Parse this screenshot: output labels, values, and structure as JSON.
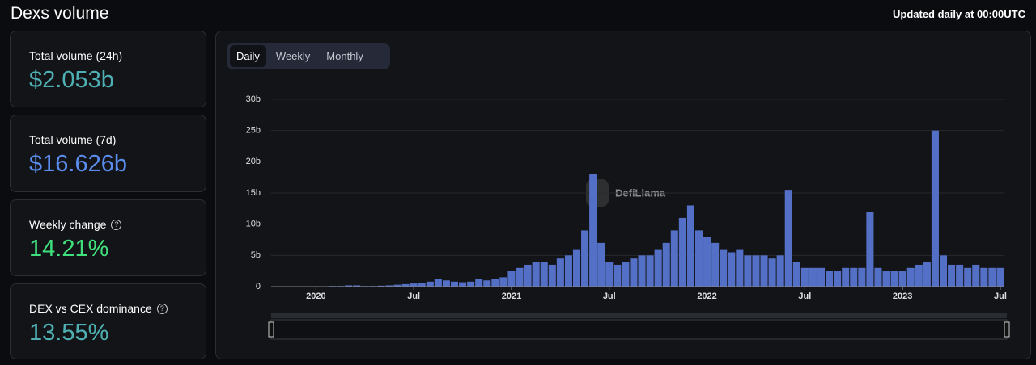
{
  "header": {
    "title": "Dexs volume",
    "updated": "Updated daily at 00:00UTC"
  },
  "cards": [
    {
      "label": "Total volume (24h)",
      "value": "$2.053b"
    },
    {
      "label": "Total volume (7d)",
      "value": "$16.626b"
    },
    {
      "label": "Weekly change",
      "value": "14.21%"
    },
    {
      "label": "DEX vs CEX dominance",
      "value": "13.55%"
    }
  ],
  "tabs": [
    "Daily",
    "Weekly",
    "Monthly"
  ],
  "watermark": "DefiLlama",
  "chart_data": {
    "type": "bar",
    "categories": [
      null,
      null,
      null,
      null,
      null,
      "2020",
      null,
      null,
      null,
      null,
      null,
      null,
      null,
      null,
      null,
      null,
      null,
      "Jul",
      null,
      null,
      null,
      null,
      null,
      null,
      null,
      null,
      null,
      null,
      null,
      "2021",
      null,
      null,
      null,
      null,
      null,
      null,
      null,
      null,
      null,
      null,
      null,
      "Jul",
      null,
      null,
      null,
      null,
      null,
      null,
      null,
      null,
      null,
      null,
      null,
      "2022",
      null,
      null,
      null,
      null,
      null,
      null,
      null,
      null,
      null,
      null,
      null,
      "Jul",
      null,
      null,
      null,
      null,
      null,
      null,
      null,
      null,
      null,
      null,
      null,
      "2023",
      null,
      null,
      null,
      null,
      null,
      null,
      null,
      null,
      null,
      null,
      null,
      "Jul"
    ],
    "values": [
      0.05,
      0.05,
      0.05,
      0.05,
      0.05,
      0.05,
      0.05,
      0.1,
      0.1,
      0.2,
      0.2,
      0.1,
      0.1,
      0.15,
      0.2,
      0.3,
      0.4,
      0.5,
      0.6,
      0.8,
      1.2,
      1.0,
      0.8,
      0.7,
      0.8,
      1.2,
      1.0,
      1.2,
      1.5,
      2.5,
      3,
      3.5,
      4,
      4,
      3.5,
      4.5,
      5,
      6,
      9,
      18,
      7,
      4,
      3.5,
      4,
      4.5,
      5,
      5,
      6,
      7,
      9,
      11,
      13,
      9,
      8,
      7,
      6,
      5.5,
      6,
      5,
      5,
      5,
      4.5,
      5,
      15.5,
      4,
      3,
      3,
      3,
      2.5,
      2.5,
      3,
      3,
      3,
      12,
      3,
      2.5,
      2.5,
      2.5,
      3,
      3.5,
      4,
      25,
      5,
      3.5,
      3.5,
      3,
      3.5,
      3,
      3,
      3
    ],
    "color": "#5470c6",
    "ylim": [
      0,
      30
    ],
    "yticks": [
      0,
      {
        "value": 5,
        "label": "5b"
      },
      {
        "value": 10,
        "label": "10b"
      },
      {
        "value": 15,
        "label": "15b"
      },
      {
        "value": 20,
        "label": "20b"
      },
      {
        "value": 25,
        "label": "25b"
      },
      {
        "value": 30,
        "label": "30b"
      }
    ],
    "grid": true
  }
}
